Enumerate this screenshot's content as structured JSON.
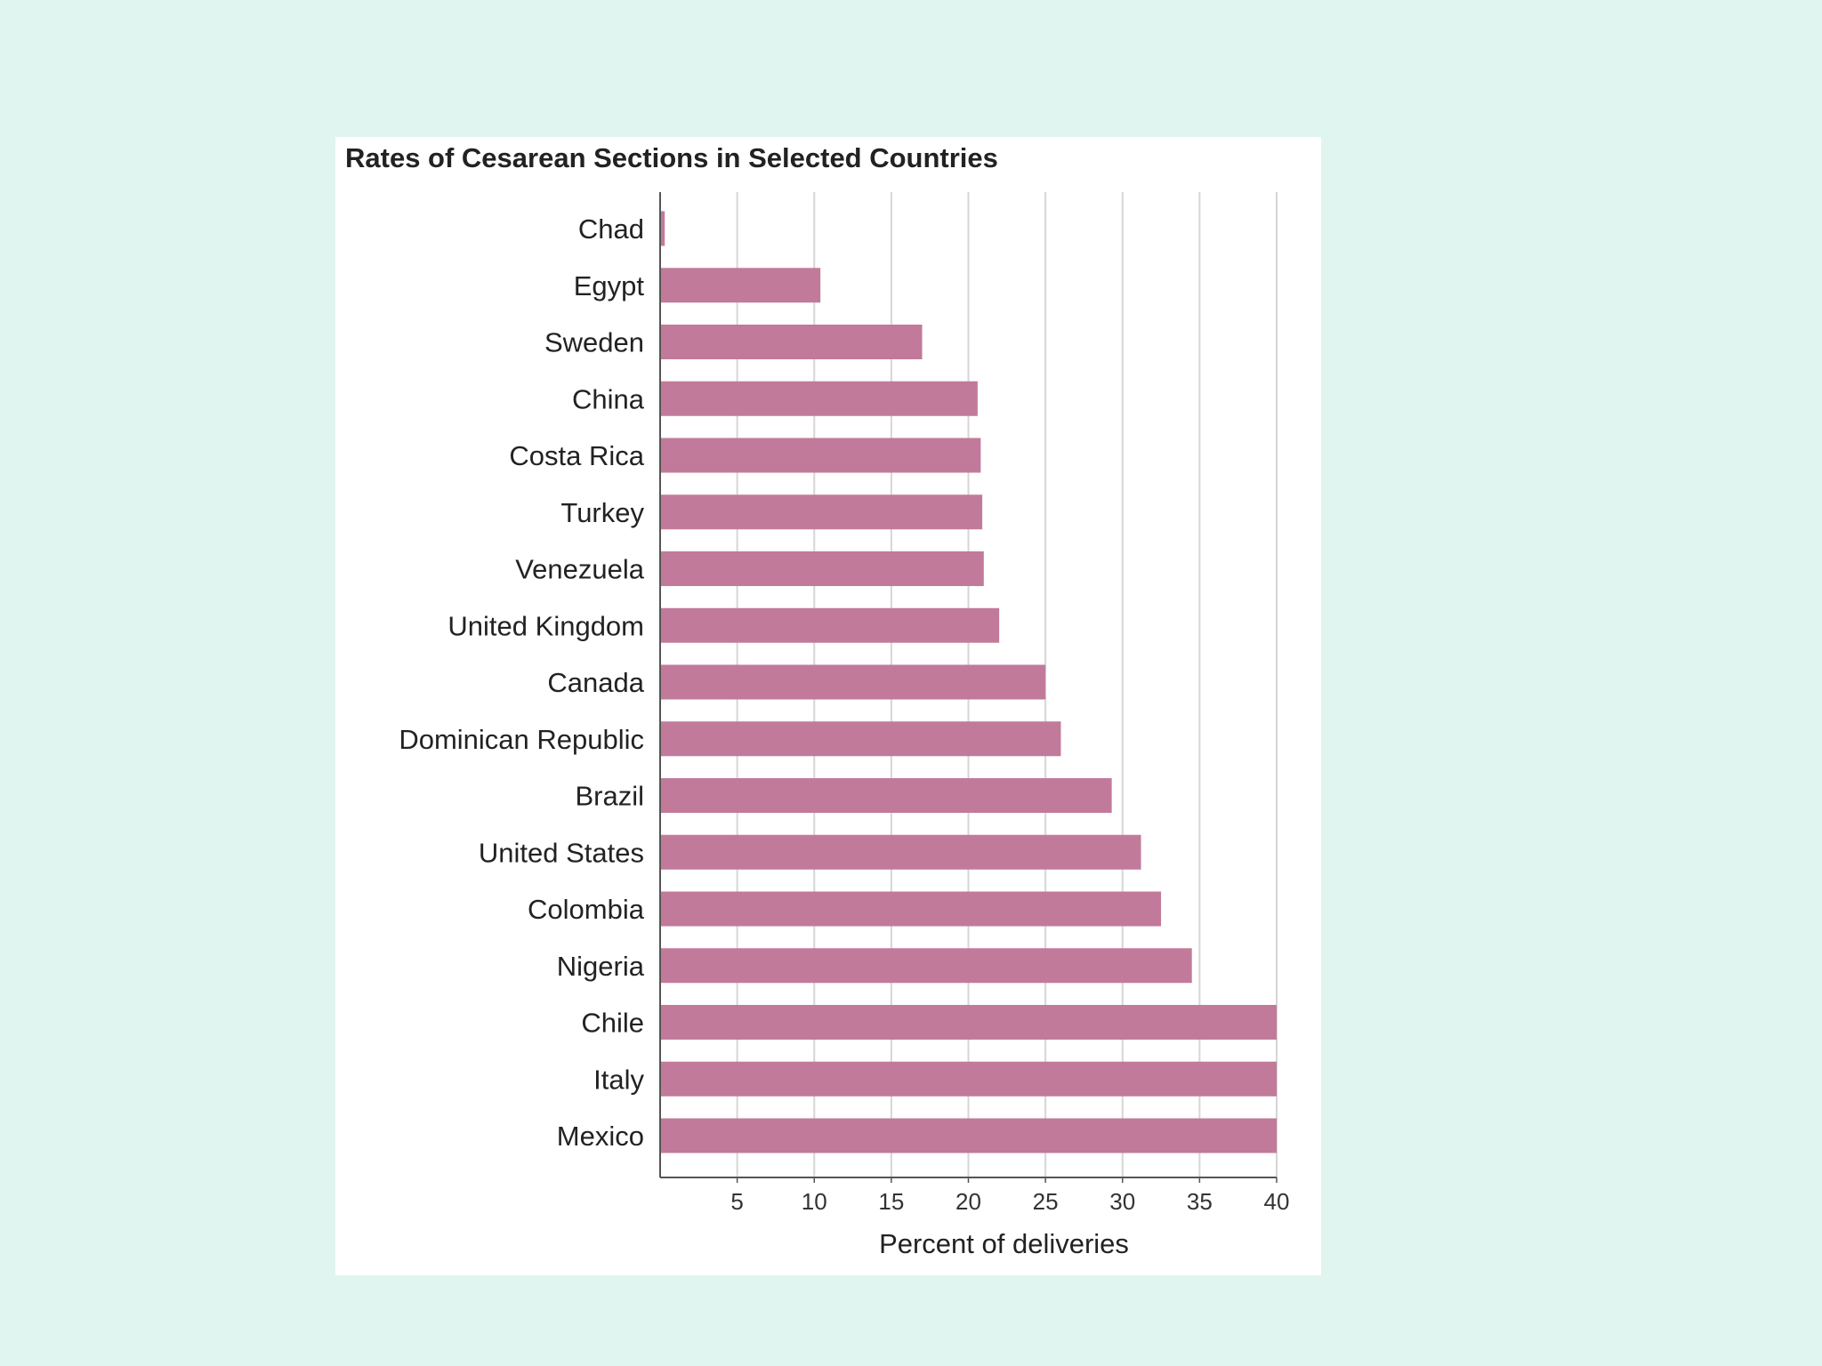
{
  "colors": {
    "background": "#e0f5ef",
    "card": "#ffffff",
    "bar": "#c27a9b",
    "grid": "#d6d6d6",
    "axis": "#555555",
    "text": "#222222"
  },
  "chart_data": {
    "type": "bar",
    "orientation": "horizontal",
    "title": "Rates of Cesarean Sections in Selected Countries",
    "xlabel": "Percent of deliveries",
    "ylabel": "",
    "xlim": [
      0,
      40
    ],
    "xticks": [
      5,
      10,
      15,
      20,
      25,
      30,
      35,
      40
    ],
    "grid": true,
    "categories": [
      "Chad",
      "Egypt",
      "Sweden",
      "China",
      "Costa Rica",
      "Turkey",
      "Venezuela",
      "United Kingdom",
      "Canada",
      "Dominican Republic",
      "Brazil",
      "United States",
      "Colombia",
      "Nigeria",
      "Chile",
      "Italy",
      "Mexico"
    ],
    "values": [
      0.3,
      10.4,
      17.0,
      20.6,
      20.8,
      20.9,
      21.0,
      22.0,
      25.0,
      26.0,
      29.3,
      31.2,
      32.5,
      34.5,
      40,
      40,
      40
    ]
  }
}
